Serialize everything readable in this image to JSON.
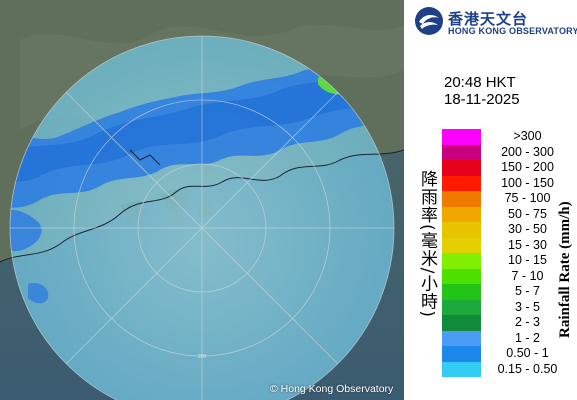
{
  "header": {
    "logo_cn": "香港天文台",
    "logo_en": "HONG KONG OBSERVATORY"
  },
  "timestamp": {
    "time": "20:48 HKT",
    "date": "18-11-2025"
  },
  "legend": {
    "title_cn": "降雨率(毫米/小時)",
    "title_en": "Rainfall Rate (mm/h)",
    "items": [
      {
        "label": ">300",
        "color": "#ff00ff"
      },
      {
        "label": "200 - 300",
        "color": "#c8007e"
      },
      {
        "label": "150 - 200",
        "color": "#e6001c"
      },
      {
        "label": "100 - 150",
        "color": "#ff1a00"
      },
      {
        "label": "75 - 100",
        "color": "#f07a00"
      },
      {
        "label": "50 - 75",
        "color": "#f0a800"
      },
      {
        "label": "30 - 50",
        "color": "#e8c400"
      },
      {
        "label": "15 - 30",
        "color": "#e4d000"
      },
      {
        "label": "10 - 15",
        "color": "#80ef00"
      },
      {
        "label": "7 - 10",
        "color": "#4be000"
      },
      {
        "label": "5 - 7",
        "color": "#22c41a"
      },
      {
        "label": "3 - 5",
        "color": "#1aa93a"
      },
      {
        "label": "2 - 3",
        "color": "#118a3c"
      },
      {
        "label": "1 - 2",
        "color": "#4a9cf4"
      },
      {
        "label": "0.50 - 1",
        "color": "#1c88ec"
      },
      {
        "label": "0.15 - 0.50",
        "color": "#33ccf5"
      }
    ]
  },
  "map": {
    "range_ring_label": "200",
    "copyright": "© Hong Kong Observatory",
    "colors": {
      "land": "#5d6d5c",
      "sea": "#3f5d70",
      "light_rain": "#2f7ee0",
      "heavy_rain": "#5ed840"
    }
  }
}
